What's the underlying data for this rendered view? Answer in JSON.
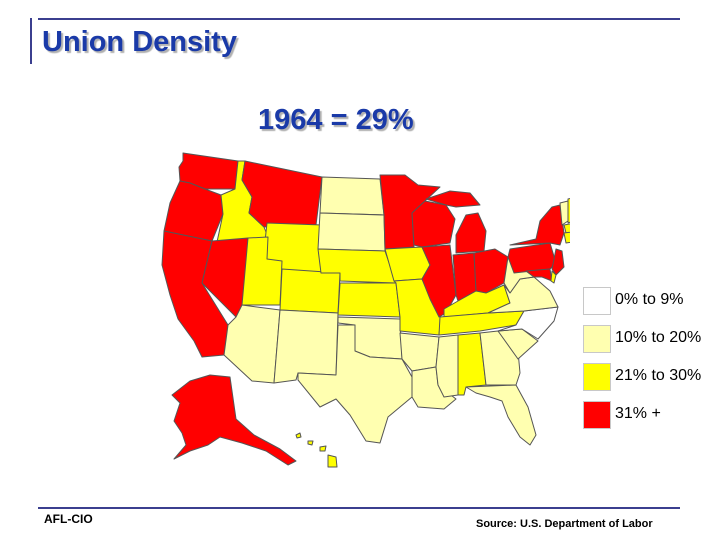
{
  "title": "Union Density",
  "subtitle": "1964 = 29%",
  "legend": [
    {
      "label": "0% to 9%",
      "color": "#ffffff"
    },
    {
      "label": "10% to 20%",
      "color": "#ffffb0"
    },
    {
      "label": "21% to 30%",
      "color": "#ffff00"
    },
    {
      "label": " 31% +",
      "color": "#ff0000"
    }
  ],
  "colors": {
    "title": "#1a3aa8",
    "rule": "#3b3f8f",
    "high": "#ff0000",
    "mid": "#ffff00",
    "low": "#ffffb0",
    "none": "#ffffff"
  },
  "footer": {
    "org": "AFL-CIO",
    "source": "Source: U.S. Department of Labor"
  }
}
